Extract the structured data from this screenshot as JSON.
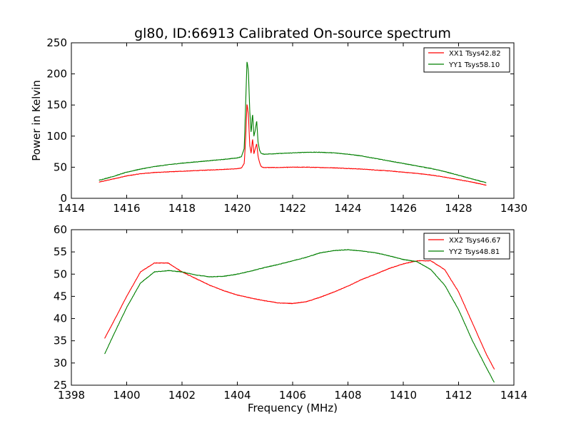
{
  "figure": {
    "title": "gl80, ID:66913 Calibrated On-source spectrum"
  },
  "colors": {
    "red": "#ff0000",
    "green": "#007f00",
    "axis": "#000000",
    "background": "#ffffff"
  },
  "chart_data": [
    {
      "type": "line",
      "title": "gl80, ID:66913 Calibrated On-source spectrum",
      "xlabel": "",
      "ylabel": "Power in Kelvin",
      "xlim": [
        1414,
        1430
      ],
      "ylim": [
        0,
        250
      ],
      "xticks": [
        1414,
        1416,
        1418,
        1420,
        1422,
        1424,
        1426,
        1428,
        1430
      ],
      "yticks": [
        0,
        50,
        100,
        150,
        200,
        250
      ],
      "legend_position": "top-right",
      "series": [
        {
          "name": "XX1 Tsys42.82",
          "color": "#ff0000",
          "x": [
            1415.0,
            1415.5,
            1416.0,
            1416.5,
            1417.0,
            1417.5,
            1418.0,
            1418.5,
            1419.0,
            1419.5,
            1420.0,
            1420.15,
            1420.25,
            1420.3,
            1420.35,
            1420.4,
            1420.45,
            1420.5,
            1420.55,
            1420.6,
            1420.65,
            1420.7,
            1420.75,
            1420.8,
            1420.85,
            1420.9,
            1420.95,
            1421.0,
            1421.5,
            1422.0,
            1422.5,
            1423.0,
            1423.5,
            1424.0,
            1424.5,
            1425.0,
            1425.5,
            1426.0,
            1426.5,
            1427.0,
            1427.5,
            1428.0,
            1428.5,
            1429.0
          ],
          "values": [
            26,
            31,
            36,
            39.5,
            41.5,
            42.5,
            43.5,
            44.5,
            45.5,
            46.5,
            47.5,
            49,
            56,
            95,
            152,
            135,
            85,
            72,
            96,
            72,
            80,
            88,
            68,
            58,
            52,
            50,
            49.5,
            49.5,
            49.5,
            50,
            50,
            49.5,
            49,
            48,
            47,
            45.5,
            44,
            42,
            40,
            37.5,
            34,
            30,
            26,
            21
          ]
        },
        {
          "name": "YY1 Tsys58.10",
          "color": "#007f00",
          "x": [
            1415.0,
            1415.5,
            1416.0,
            1416.5,
            1417.0,
            1417.5,
            1418.0,
            1418.5,
            1419.0,
            1419.5,
            1420.0,
            1420.15,
            1420.25,
            1420.3,
            1420.35,
            1420.4,
            1420.45,
            1420.5,
            1420.55,
            1420.6,
            1420.65,
            1420.7,
            1420.75,
            1420.8,
            1420.85,
            1420.9,
            1420.95,
            1421.0,
            1421.5,
            1422.0,
            1422.5,
            1423.0,
            1423.5,
            1424.0,
            1424.5,
            1425.0,
            1425.5,
            1426.0,
            1426.5,
            1427.0,
            1427.5,
            1428.0,
            1428.5,
            1429.0
          ],
          "values": [
            29,
            35,
            42,
            47,
            51,
            54,
            56.5,
            58.5,
            60.5,
            62.5,
            65,
            67,
            80,
            150,
            221,
            205,
            140,
            105,
            137,
            100,
            110,
            125,
            90,
            78,
            73,
            71.5,
            71,
            71,
            72,
            73,
            74,
            74,
            73,
            71,
            68,
            64,
            60,
            56,
            52,
            48,
            43,
            37,
            31,
            25
          ]
        }
      ]
    },
    {
      "type": "line",
      "title": "",
      "xlabel": "Frequency (MHz)",
      "ylabel": "",
      "xlim": [
        1398,
        1414
      ],
      "ylim": [
        25,
        60
      ],
      "xticks": [
        1398,
        1400,
        1402,
        1404,
        1406,
        1408,
        1410,
        1412,
        1414
      ],
      "yticks": [
        25,
        30,
        35,
        40,
        45,
        50,
        55,
        60
      ],
      "legend_position": "top-right",
      "series": [
        {
          "name": "XX2 Tsys46.67",
          "color": "#ff0000",
          "x": [
            1399.2,
            1399.5,
            1400.0,
            1400.5,
            1401.0,
            1401.5,
            1402.0,
            1402.5,
            1403.0,
            1403.5,
            1404.0,
            1404.5,
            1405.0,
            1405.5,
            1406.0,
            1406.5,
            1407.0,
            1407.5,
            1408.0,
            1408.5,
            1409.0,
            1409.5,
            1410.0,
            1410.5,
            1411.0,
            1411.5,
            1412.0,
            1412.5,
            1413.0,
            1413.3
          ],
          "values": [
            35.5,
            39,
            45,
            50.5,
            52.5,
            52.5,
            50.5,
            49,
            47.5,
            46.3,
            45.3,
            44.6,
            44,
            43.5,
            43.4,
            43.8,
            44.8,
            46,
            47.3,
            48.8,
            50,
            51.3,
            52.3,
            53,
            53,
            51,
            46,
            39,
            32,
            28.5
          ]
        },
        {
          "name": "YY2 Tsys48.81",
          "color": "#007f00",
          "x": [
            1399.2,
            1399.5,
            1400.0,
            1400.5,
            1401.0,
            1401.5,
            1402.0,
            1402.5,
            1403.0,
            1403.5,
            1404.0,
            1404.5,
            1405.0,
            1405.5,
            1406.0,
            1406.5,
            1407.0,
            1407.5,
            1408.0,
            1408.5,
            1409.0,
            1409.5,
            1410.0,
            1410.5,
            1411.0,
            1411.5,
            1412.0,
            1412.5,
            1413.0,
            1413.3
          ],
          "values": [
            32,
            36,
            42.5,
            48,
            50.5,
            50.8,
            50.5,
            49.8,
            49.4,
            49.5,
            50,
            50.7,
            51.5,
            52.2,
            53,
            53.8,
            54.8,
            55.3,
            55.5,
            55.2,
            54.8,
            54.1,
            53.3,
            52.8,
            51,
            47.5,
            42,
            35,
            29,
            25.5
          ]
        }
      ]
    }
  ]
}
